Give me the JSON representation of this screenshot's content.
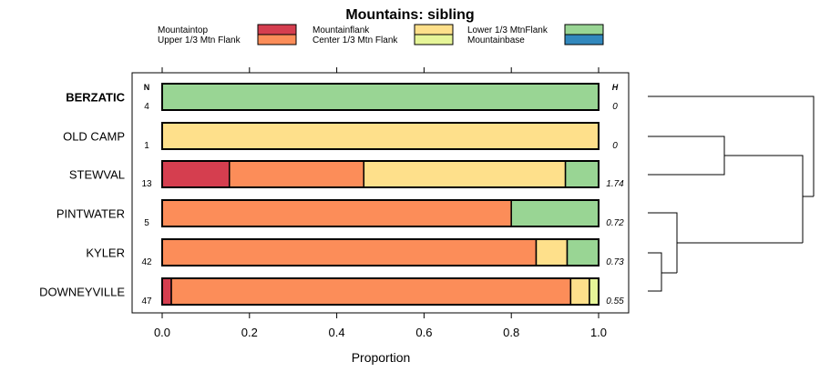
{
  "chart_data": {
    "type": "bar",
    "stacked": true,
    "orientation": "horizontal",
    "title": "Mountains: sibling",
    "xlabel": "Proportion",
    "ylabel": "",
    "xlim": [
      0,
      1
    ],
    "xticks": [
      "0.0",
      "0.2",
      "0.4",
      "0.6",
      "0.8",
      "1.0"
    ],
    "n_header": "N",
    "h_header": "H",
    "legend": [
      {
        "name": "Mountaintop",
        "color": "#d53e4f"
      },
      {
        "name": "Upper 1/3 Mtn Flank",
        "color": "#fc8d59"
      },
      {
        "name": "Mountainflank",
        "color": "#fee08b"
      },
      {
        "name": "Center 1/3 Mtn Flank",
        "color": "#e6f598"
      },
      {
        "name": "Lower 1/3 MtnFlank",
        "color": "#99d594"
      },
      {
        "name": "Mountainbase",
        "color": "#3288bd"
      }
    ],
    "rows": [
      {
        "label": "BERZATIC",
        "bold": true,
        "n": "4",
        "h": "0",
        "values": [
          0,
          0,
          0,
          0,
          1.0,
          0
        ]
      },
      {
        "label": "OLD CAMP",
        "bold": false,
        "n": "1",
        "h": "0",
        "values": [
          0,
          0,
          1.0,
          0,
          0,
          0
        ]
      },
      {
        "label": "STEWVAL",
        "bold": false,
        "n": "13",
        "h": "1.74",
        "values": [
          0.154,
          0.308,
          0.462,
          0,
          0.076,
          0
        ]
      },
      {
        "label": "PINTWATER",
        "bold": false,
        "n": "5",
        "h": "0.72",
        "values": [
          0,
          0.8,
          0,
          0,
          0.2,
          0
        ]
      },
      {
        "label": "KYLER",
        "bold": false,
        "n": "42",
        "h": "0.73",
        "values": [
          0,
          0.857,
          0.071,
          0,
          0.072,
          0
        ]
      },
      {
        "label": "DOWNEYVILLE",
        "bold": false,
        "n": "47",
        "h": "0.55",
        "values": [
          0.021,
          0.915,
          0.043,
          0.021,
          0,
          0
        ]
      }
    ]
  }
}
